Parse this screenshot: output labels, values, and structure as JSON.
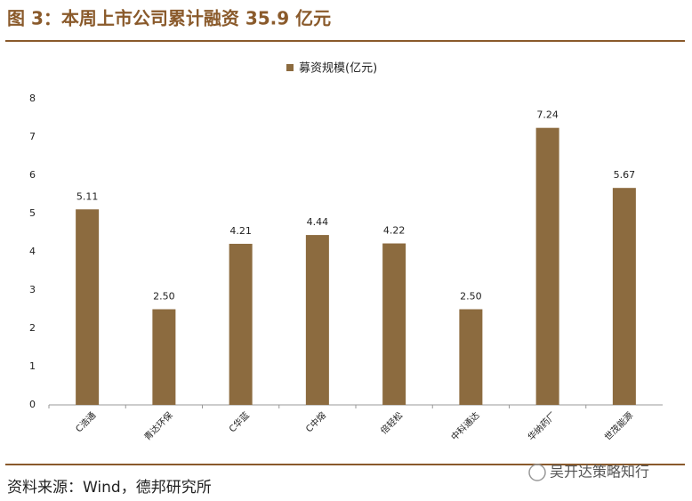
{
  "chart_data": {
    "type": "bar",
    "title": "图 3：本周上市公司累计融资 35.9 亿元",
    "categories": [
      "C浩通",
      "青达环保",
      "C华蓝",
      "C中熔",
      "倍轻松",
      "中科通达",
      "华纳药厂",
      "世茂能源"
    ],
    "series": [
      {
        "name": "募资规模(亿元)",
        "color": "#8c6b3f",
        "values": [
          5.11,
          2.5,
          4.21,
          4.44,
          4.22,
          2.5,
          7.24,
          5.67
        ],
        "value_labels": [
          "5.11",
          "2.50",
          "4.21",
          "4.44",
          "4.22",
          "2.50",
          "7.24",
          "5.67"
        ]
      }
    ],
    "ylim": [
      0,
      8
    ],
    "yticks": [
      0,
      1,
      2,
      3,
      4,
      5,
      6,
      7,
      8
    ],
    "grid": false
  },
  "source": "资料来源：Wind，德邦研究所",
  "watermark": "吴开达策略知行"
}
